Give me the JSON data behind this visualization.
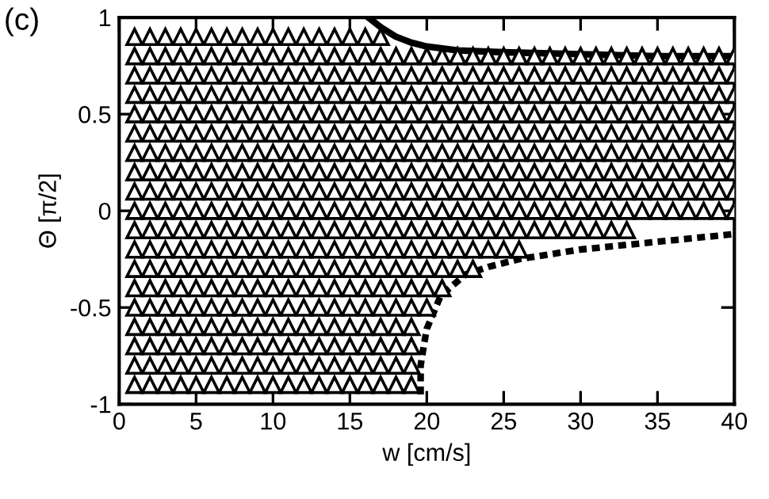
{
  "chart_data": {
    "type": "scatter",
    "xlabel": "w [cm/s]",
    "ylabel": "Θ [π/2]",
    "annotations": [
      "(c)"
    ],
    "xlim": [
      0,
      40
    ],
    "xticks": [
      0,
      5,
      10,
      15,
      20,
      25,
      30,
      35,
      40
    ],
    "ylim": [
      -1,
      1
    ],
    "yticks": [
      -1,
      -0.5,
      0,
      0.5,
      1
    ],
    "grid": false,
    "marker": "triangle",
    "series": [
      {
        "color": "#000000",
        "x": [
          1,
          2,
          3,
          4,
          5,
          6,
          7,
          8,
          9,
          10,
          11,
          12,
          13,
          14,
          15,
          16,
          17
        ],
        "values": [
          0.9,
          0.9,
          0.9,
          0.9,
          0.9,
          0.9,
          0.9,
          0.9,
          0.9,
          0.9,
          0.9,
          0.9,
          0.9,
          0.9,
          0.9,
          0.9,
          0.9
        ]
      },
      {
        "color": "#000000",
        "x": [
          1,
          2,
          3,
          4,
          5,
          6,
          7,
          8,
          9,
          10,
          11,
          12,
          13,
          14,
          15,
          16,
          17,
          18,
          19,
          20,
          21,
          22,
          23,
          24,
          25,
          26,
          27,
          28,
          29,
          30,
          31,
          32,
          33,
          34,
          35,
          36,
          37,
          38,
          39,
          40
        ],
        "values": [
          0.8,
          0.8,
          0.8,
          0.8,
          0.8,
          0.8,
          0.8,
          0.8,
          0.8,
          0.8,
          0.8,
          0.8,
          0.8,
          0.8,
          0.8,
          0.8,
          0.8,
          0.8,
          0.8,
          0.8,
          0.8,
          0.8,
          0.8,
          0.8,
          0.8,
          0.8,
          0.8,
          0.8,
          0.8,
          0.8,
          0.8,
          0.8,
          0.8,
          0.8,
          0.8,
          0.8,
          0.8,
          0.8,
          0.8,
          0.8
        ]
      },
      {
        "color": "#000000",
        "x": [
          1,
          2,
          3,
          4,
          5,
          6,
          7,
          8,
          9,
          10,
          11,
          12,
          13,
          14,
          15,
          16,
          17,
          18,
          19,
          20,
          21,
          22,
          23,
          24,
          25,
          26,
          27,
          28,
          29,
          30,
          31,
          32,
          33,
          34,
          35,
          36,
          37,
          38,
          39,
          40
        ],
        "values": [
          0.7,
          0.7,
          0.7,
          0.7,
          0.7,
          0.7,
          0.7,
          0.7,
          0.7,
          0.7,
          0.7,
          0.7,
          0.7,
          0.7,
          0.7,
          0.7,
          0.7,
          0.7,
          0.7,
          0.7,
          0.7,
          0.7,
          0.7,
          0.7,
          0.7,
          0.7,
          0.7,
          0.7,
          0.7,
          0.7,
          0.7,
          0.7,
          0.7,
          0.7,
          0.7,
          0.7,
          0.7,
          0.7,
          0.7,
          0.7
        ]
      },
      {
        "color": "#000000",
        "x": [
          1,
          2,
          3,
          4,
          5,
          6,
          7,
          8,
          9,
          10,
          11,
          12,
          13,
          14,
          15,
          16,
          17,
          18,
          19,
          20,
          21,
          22,
          23,
          24,
          25,
          26,
          27,
          28,
          29,
          30,
          31,
          32,
          33,
          34,
          35,
          36,
          37,
          38,
          39,
          40
        ],
        "values": [
          0.6,
          0.6,
          0.6,
          0.6,
          0.6,
          0.6,
          0.6,
          0.6,
          0.6,
          0.6,
          0.6,
          0.6,
          0.6,
          0.6,
          0.6,
          0.6,
          0.6,
          0.6,
          0.6,
          0.6,
          0.6,
          0.6,
          0.6,
          0.6,
          0.6,
          0.6,
          0.6,
          0.6,
          0.6,
          0.6,
          0.6,
          0.6,
          0.6,
          0.6,
          0.6,
          0.6,
          0.6,
          0.6,
          0.6,
          0.6
        ]
      },
      {
        "color": "#000000",
        "x": [
          1,
          2,
          3,
          4,
          5,
          6,
          7,
          8,
          9,
          10,
          11,
          12,
          13,
          14,
          15,
          16,
          17,
          18,
          19,
          20,
          21,
          22,
          23,
          24,
          25,
          26,
          27,
          28,
          29,
          30,
          31,
          32,
          33,
          34,
          35,
          36,
          37,
          38,
          39,
          40
        ],
        "values": [
          0.5,
          0.5,
          0.5,
          0.5,
          0.5,
          0.5,
          0.5,
          0.5,
          0.5,
          0.5,
          0.5,
          0.5,
          0.5,
          0.5,
          0.5,
          0.5,
          0.5,
          0.5,
          0.5,
          0.5,
          0.5,
          0.5,
          0.5,
          0.5,
          0.5,
          0.5,
          0.5,
          0.5,
          0.5,
          0.5,
          0.5,
          0.5,
          0.5,
          0.5,
          0.5,
          0.5,
          0.5,
          0.5,
          0.5,
          0.5
        ]
      },
      {
        "color": "#000000",
        "x": [
          1,
          2,
          3,
          4,
          5,
          6,
          7,
          8,
          9,
          10,
          11,
          12,
          13,
          14,
          15,
          16,
          17,
          18,
          19,
          20,
          21,
          22,
          23,
          24,
          25,
          26,
          27,
          28,
          29,
          30,
          31,
          32,
          33,
          34,
          35,
          36,
          37,
          38,
          39,
          40
        ],
        "values": [
          0.4,
          0.4,
          0.4,
          0.4,
          0.4,
          0.4,
          0.4,
          0.4,
          0.4,
          0.4,
          0.4,
          0.4,
          0.4,
          0.4,
          0.4,
          0.4,
          0.4,
          0.4,
          0.4,
          0.4,
          0.4,
          0.4,
          0.4,
          0.4,
          0.4,
          0.4,
          0.4,
          0.4,
          0.4,
          0.4,
          0.4,
          0.4,
          0.4,
          0.4,
          0.4,
          0.4,
          0.4,
          0.4,
          0.4,
          0.4
        ]
      },
      {
        "color": "#000000",
        "x": [
          1,
          2,
          3,
          4,
          5,
          6,
          7,
          8,
          9,
          10,
          11,
          12,
          13,
          14,
          15,
          16,
          17,
          18,
          19,
          20,
          21,
          22,
          23,
          24,
          25,
          26,
          27,
          28,
          29,
          30,
          31,
          32,
          33,
          34,
          35,
          36,
          37,
          38,
          39,
          40
        ],
        "values": [
          0.3,
          0.3,
          0.3,
          0.3,
          0.3,
          0.3,
          0.3,
          0.3,
          0.3,
          0.3,
          0.3,
          0.3,
          0.3,
          0.3,
          0.3,
          0.3,
          0.3,
          0.3,
          0.3,
          0.3,
          0.3,
          0.3,
          0.3,
          0.3,
          0.3,
          0.3,
          0.3,
          0.3,
          0.3,
          0.3,
          0.3,
          0.3,
          0.3,
          0.3,
          0.3,
          0.3,
          0.3,
          0.3,
          0.3,
          0.3
        ]
      },
      {
        "color": "#000000",
        "x": [
          1,
          2,
          3,
          4,
          5,
          6,
          7,
          8,
          9,
          10,
          11,
          12,
          13,
          14,
          15,
          16,
          17,
          18,
          19,
          20,
          21,
          22,
          23,
          24,
          25,
          26,
          27,
          28,
          29,
          30,
          31,
          32,
          33,
          34,
          35,
          36,
          37,
          38,
          39,
          40
        ],
        "values": [
          0.2,
          0.2,
          0.2,
          0.2,
          0.2,
          0.2,
          0.2,
          0.2,
          0.2,
          0.2,
          0.2,
          0.2,
          0.2,
          0.2,
          0.2,
          0.2,
          0.2,
          0.2,
          0.2,
          0.2,
          0.2,
          0.2,
          0.2,
          0.2,
          0.2,
          0.2,
          0.2,
          0.2,
          0.2,
          0.2,
          0.2,
          0.2,
          0.2,
          0.2,
          0.2,
          0.2,
          0.2,
          0.2,
          0.2,
          0.2
        ]
      },
      {
        "color": "#000000",
        "x": [
          1,
          2,
          3,
          4,
          5,
          6,
          7,
          8,
          9,
          10,
          11,
          12,
          13,
          14,
          15,
          16,
          17,
          18,
          19,
          20,
          21,
          22,
          23,
          24,
          25,
          26,
          27,
          28,
          29,
          30,
          31,
          32,
          33,
          34,
          35,
          36,
          37,
          38,
          39,
          40
        ],
        "values": [
          0.1,
          0.1,
          0.1,
          0.1,
          0.1,
          0.1,
          0.1,
          0.1,
          0.1,
          0.1,
          0.1,
          0.1,
          0.1,
          0.1,
          0.1,
          0.1,
          0.1,
          0.1,
          0.1,
          0.1,
          0.1,
          0.1,
          0.1,
          0.1,
          0.1,
          0.1,
          0.1,
          0.1,
          0.1,
          0.1,
          0.1,
          0.1,
          0.1,
          0.1,
          0.1,
          0.1,
          0.1,
          0.1,
          0.1,
          0.1
        ]
      },
      {
        "color": "#000000",
        "x": [
          1,
          2,
          3,
          4,
          5,
          6,
          7,
          8,
          9,
          10,
          11,
          12,
          13,
          14,
          15,
          16,
          17,
          18,
          19,
          20,
          21,
          22,
          23,
          24,
          25,
          26,
          27,
          28,
          29,
          30,
          31,
          32,
          33,
          34,
          35,
          36,
          37,
          38,
          39,
          40
        ],
        "values": [
          0,
          0,
          0,
          0,
          0,
          0,
          0,
          0,
          0,
          0,
          0,
          0,
          0,
          0,
          0,
          0,
          0,
          0,
          0,
          0,
          0,
          0,
          0,
          0,
          0,
          0,
          0,
          0,
          0,
          0,
          0,
          0,
          0,
          0,
          0,
          0,
          0,
          0,
          0,
          0
        ]
      },
      {
        "color": "#000000",
        "x": [
          1,
          2,
          3,
          4,
          5,
          6,
          7,
          8,
          9,
          10,
          11,
          12,
          13,
          14,
          15,
          16,
          17,
          18,
          19,
          20,
          21,
          22,
          23,
          24,
          25,
          26,
          27,
          28,
          29,
          30,
          31,
          32,
          33
        ],
        "values": [
          -0.1,
          -0.1,
          -0.1,
          -0.1,
          -0.1,
          -0.1,
          -0.1,
          -0.1,
          -0.1,
          -0.1,
          -0.1,
          -0.1,
          -0.1,
          -0.1,
          -0.1,
          -0.1,
          -0.1,
          -0.1,
          -0.1,
          -0.1,
          -0.1,
          -0.1,
          -0.1,
          -0.1,
          -0.1,
          -0.1,
          -0.1,
          -0.1,
          -0.1,
          -0.1,
          -0.1,
          -0.1,
          -0.1
        ]
      },
      {
        "color": "#000000",
        "x": [
          1,
          2,
          3,
          4,
          5,
          6,
          7,
          8,
          9,
          10,
          11,
          12,
          13,
          14,
          15,
          16,
          17,
          18,
          19,
          20,
          21,
          22,
          23,
          24,
          25,
          26
        ],
        "values": [
          -0.2,
          -0.2,
          -0.2,
          -0.2,
          -0.2,
          -0.2,
          -0.2,
          -0.2,
          -0.2,
          -0.2,
          -0.2,
          -0.2,
          -0.2,
          -0.2,
          -0.2,
          -0.2,
          -0.2,
          -0.2,
          -0.2,
          -0.2,
          -0.2,
          -0.2,
          -0.2,
          -0.2,
          -0.2,
          -0.2
        ]
      },
      {
        "color": "#000000",
        "x": [
          1,
          2,
          3,
          4,
          5,
          6,
          7,
          8,
          9,
          10,
          11,
          12,
          13,
          14,
          15,
          16,
          17,
          18,
          19,
          20,
          21,
          22,
          23
        ],
        "values": [
          -0.3,
          -0.3,
          -0.3,
          -0.3,
          -0.3,
          -0.3,
          -0.3,
          -0.3,
          -0.3,
          -0.3,
          -0.3,
          -0.3,
          -0.3,
          -0.3,
          -0.3,
          -0.3,
          -0.3,
          -0.3,
          -0.3,
          -0.3,
          -0.3,
          -0.3,
          -0.3
        ]
      },
      {
        "color": "#000000",
        "x": [
          1,
          2,
          3,
          4,
          5,
          6,
          7,
          8,
          9,
          10,
          11,
          12,
          13,
          14,
          15,
          16,
          17,
          18,
          19,
          20,
          21
        ],
        "values": [
          -0.4,
          -0.4,
          -0.4,
          -0.4,
          -0.4,
          -0.4,
          -0.4,
          -0.4,
          -0.4,
          -0.4,
          -0.4,
          -0.4,
          -0.4,
          -0.4,
          -0.4,
          -0.4,
          -0.4,
          -0.4,
          -0.4,
          -0.4,
          -0.4
        ]
      },
      {
        "color": "#000000",
        "x": [
          1,
          2,
          3,
          4,
          5,
          6,
          7,
          8,
          9,
          10,
          11,
          12,
          13,
          14,
          15,
          16,
          17,
          18,
          19,
          20
        ],
        "values": [
          -0.5,
          -0.5,
          -0.5,
          -0.5,
          -0.5,
          -0.5,
          -0.5,
          -0.5,
          -0.5,
          -0.5,
          -0.5,
          -0.5,
          -0.5,
          -0.5,
          -0.5,
          -0.5,
          -0.5,
          -0.5,
          -0.5,
          -0.5
        ]
      },
      {
        "color": "#000000",
        "x": [
          1,
          2,
          3,
          4,
          5,
          6,
          7,
          8,
          9,
          10,
          11,
          12,
          13,
          14,
          15,
          16,
          17,
          18,
          19
        ],
        "values": [
          -0.6,
          -0.6,
          -0.6,
          -0.6,
          -0.6,
          -0.6,
          -0.6,
          -0.6,
          -0.6,
          -0.6,
          -0.6,
          -0.6,
          -0.6,
          -0.6,
          -0.6,
          -0.6,
          -0.6,
          -0.6,
          -0.6
        ]
      },
      {
        "color": "#000000",
        "x": [
          1,
          2,
          3,
          4,
          5,
          6,
          7,
          8,
          9,
          10,
          11,
          12,
          13,
          14,
          15,
          16,
          17,
          18,
          19
        ],
        "values": [
          -0.7,
          -0.7,
          -0.7,
          -0.7,
          -0.7,
          -0.7,
          -0.7,
          -0.7,
          -0.7,
          -0.7,
          -0.7,
          -0.7,
          -0.7,
          -0.7,
          -0.7,
          -0.7,
          -0.7,
          -0.7,
          -0.7
        ]
      },
      {
        "color": "#000000",
        "x": [
          1,
          2,
          3,
          4,
          5,
          6,
          7,
          8,
          9,
          10,
          11,
          12,
          13,
          14,
          15,
          16,
          17,
          18,
          19
        ],
        "values": [
          -0.8,
          -0.8,
          -0.8,
          -0.8,
          -0.8,
          -0.8,
          -0.8,
          -0.8,
          -0.8,
          -0.8,
          -0.8,
          -0.8,
          -0.8,
          -0.8,
          -0.8,
          -0.8,
          -0.8,
          -0.8,
          -0.8
        ]
      },
      {
        "color": "#000000",
        "x": [
          1,
          2,
          3,
          4,
          5,
          6,
          7,
          8,
          9,
          10,
          11,
          12,
          13,
          14,
          15,
          16,
          17,
          18,
          19
        ],
        "values": [
          -0.9,
          -0.9,
          -0.9,
          -0.9,
          -0.9,
          -0.9,
          -0.9,
          -0.9,
          -0.9,
          -0.9,
          -0.9,
          -0.9,
          -0.9,
          -0.9,
          -0.9,
          -0.9,
          -0.9,
          -0.9,
          -0.9
        ]
      },
      {
        "type": "line",
        "color": "#000000",
        "marker": "none",
        "line_style": "solid",
        "x": [
          16.2,
          17,
          18,
          19,
          20,
          22,
          25,
          30,
          35,
          40
        ],
        "values": [
          1.0,
          0.95,
          0.9,
          0.87,
          0.85,
          0.83,
          0.82,
          0.81,
          0.8,
          0.8
        ]
      },
      {
        "type": "line",
        "color": "#000000",
        "marker": "none",
        "line_style": "dashed",
        "x": [
          19.6,
          19.6,
          19.8,
          20,
          20.9,
          22.5,
          24,
          26,
          30,
          35,
          40
        ],
        "values": [
          -0.95,
          -0.8,
          -0.7,
          -0.61,
          -0.44,
          -0.33,
          -0.29,
          -0.25,
          -0.2,
          -0.16,
          -0.12
        ]
      }
    ]
  }
}
